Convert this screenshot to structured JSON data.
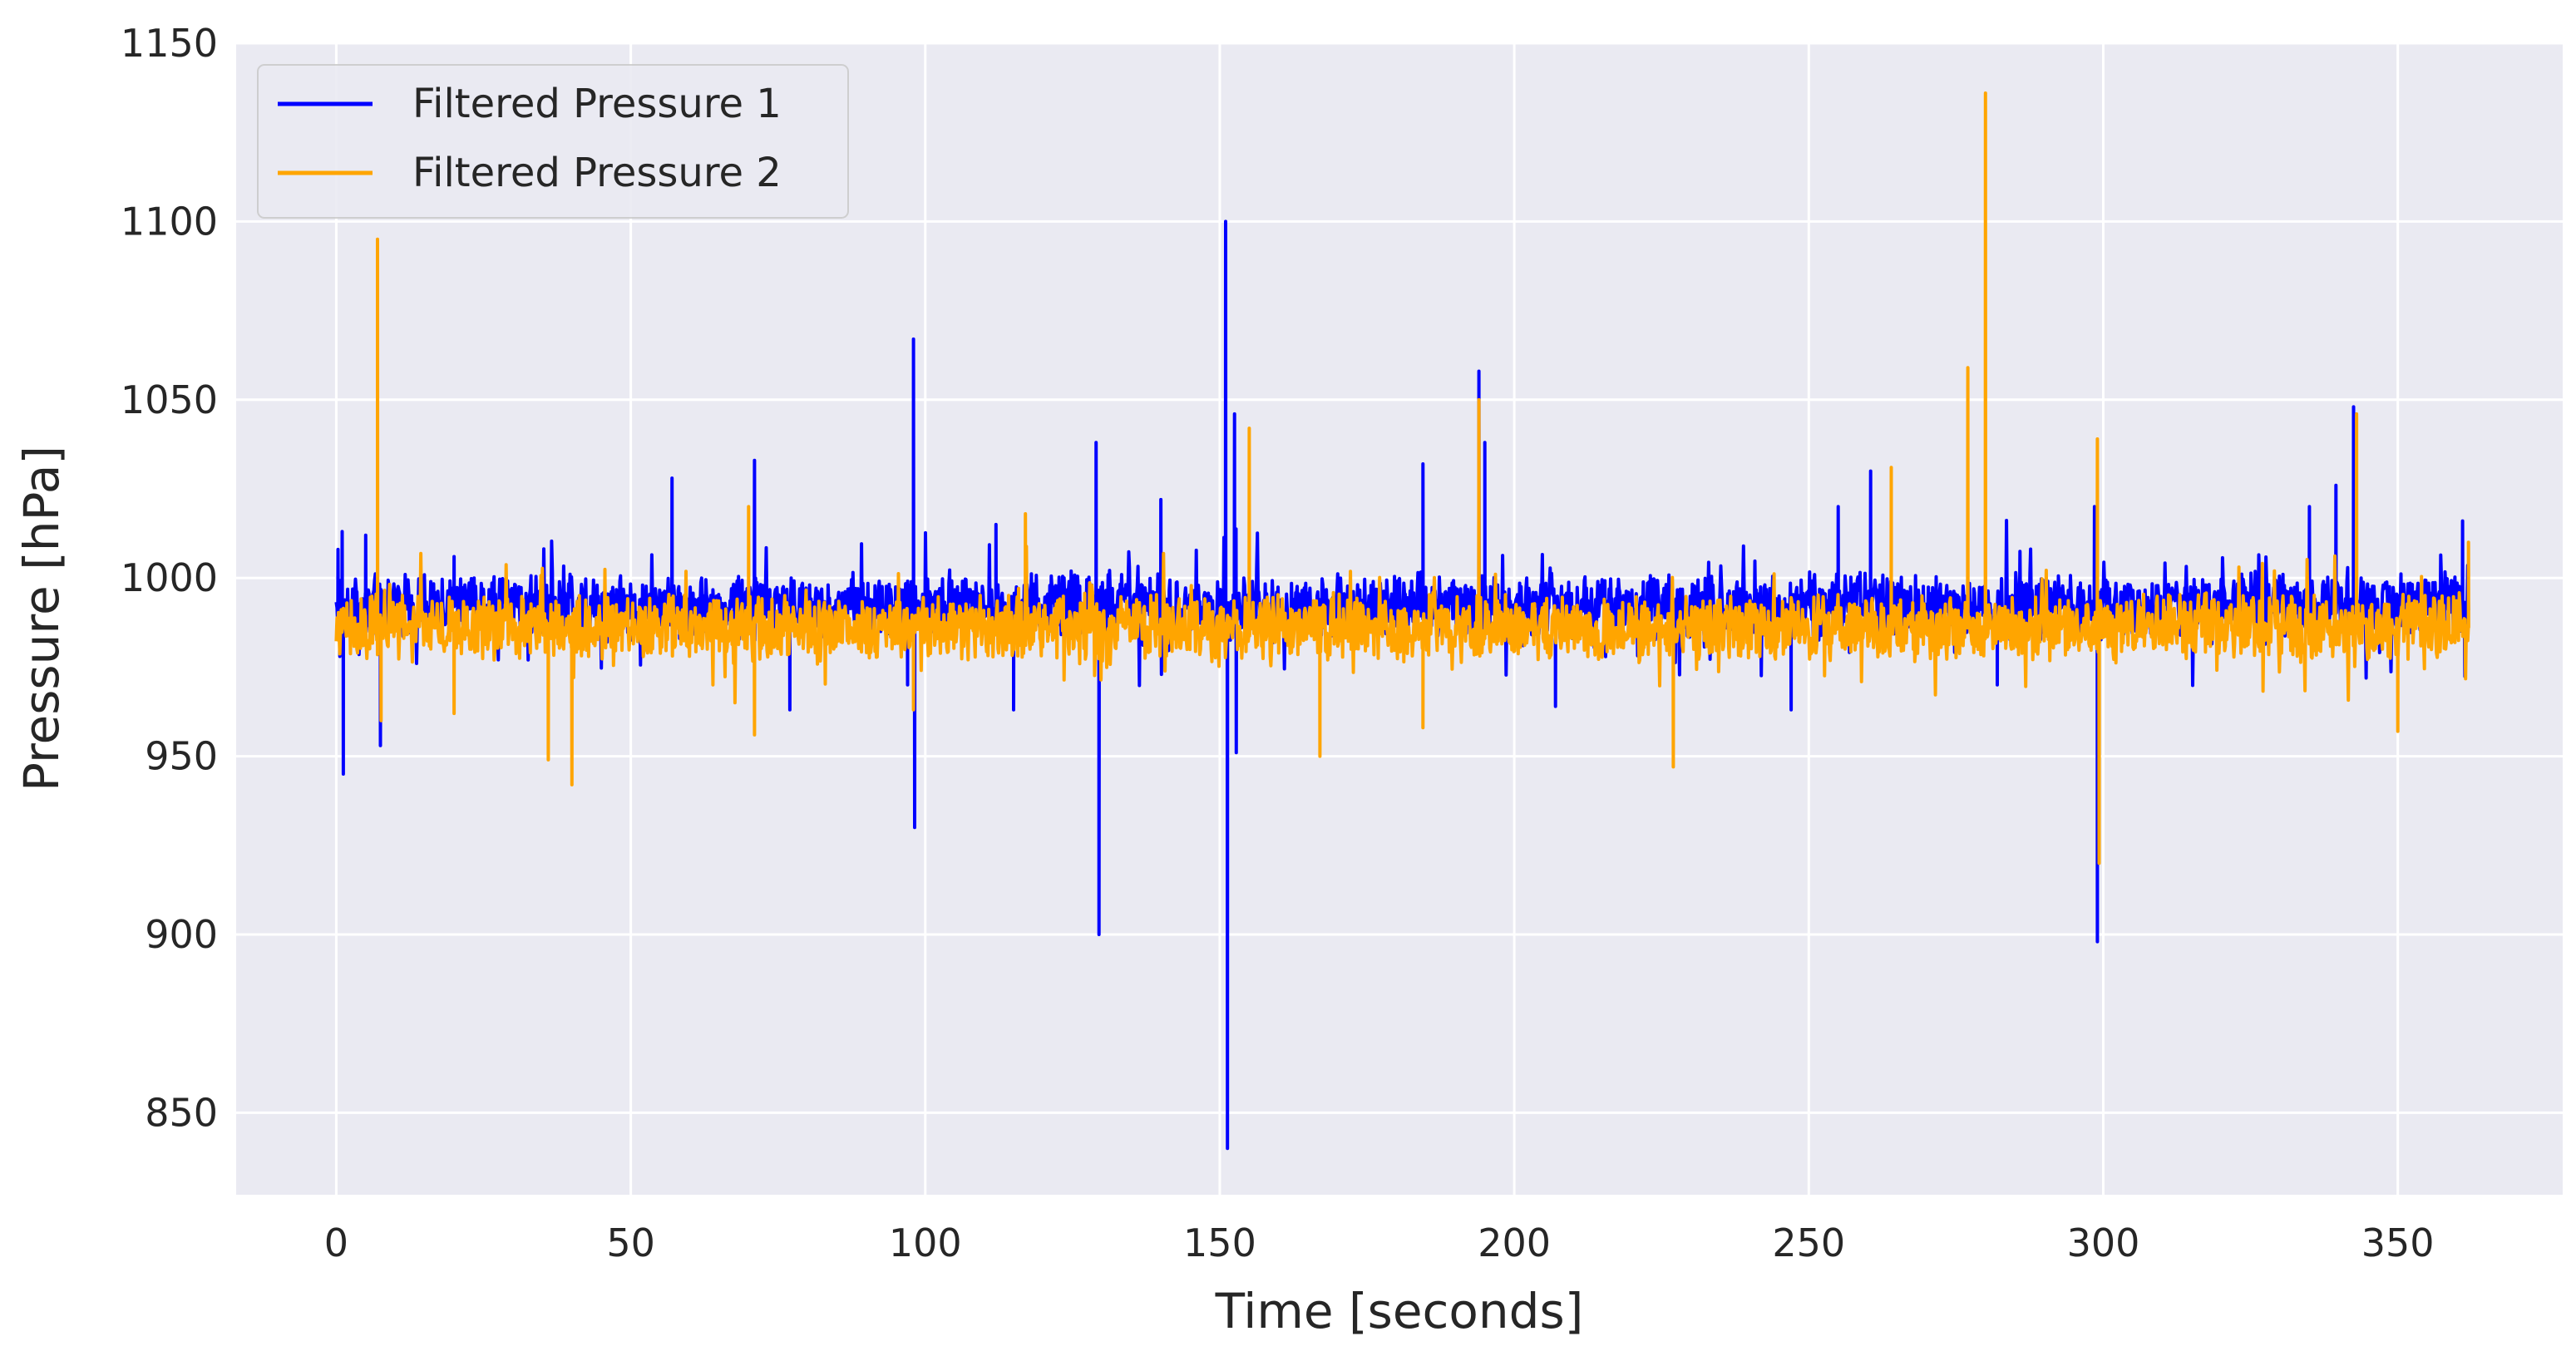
{
  "chart_data": {
    "type": "line",
    "xlabel": "Time [seconds]",
    "ylabel": "Pressure [hPa]",
    "xlim": [
      -17,
      378
    ],
    "ylim": [
      827,
      1150
    ],
    "xticks": [
      0,
      50,
      100,
      150,
      200,
      250,
      300,
      350
    ],
    "yticks": [
      850,
      900,
      950,
      1000,
      1050,
      1100,
      1150
    ],
    "grid": true,
    "legend_position": "top-left",
    "background": "#eaeaf2",
    "series": [
      {
        "name": "Filtered Pressure 1",
        "color": "#0000ff",
        "x_range": [
          0,
          362
        ],
        "baseline": 992,
        "spikes": [
          {
            "x": 0.3,
            "y": 1008
          },
          {
            "x": 0.6,
            "y": 978
          },
          {
            "x": 1.0,
            "y": 1013
          },
          {
            "x": 1.2,
            "y": 945
          },
          {
            "x": 5.0,
            "y": 1012
          },
          {
            "x": 7.5,
            "y": 953
          },
          {
            "x": 20.0,
            "y": 1006
          },
          {
            "x": 57.0,
            "y": 1028
          },
          {
            "x": 71.0,
            "y": 1033
          },
          {
            "x": 77.0,
            "y": 963
          },
          {
            "x": 97.0,
            "y": 970
          },
          {
            "x": 98.0,
            "y": 1067
          },
          {
            "x": 98.2,
            "y": 930
          },
          {
            "x": 112.0,
            "y": 1015
          },
          {
            "x": 115.0,
            "y": 963
          },
          {
            "x": 129.0,
            "y": 1038
          },
          {
            "x": 129.5,
            "y": 900
          },
          {
            "x": 140.0,
            "y": 1022
          },
          {
            "x": 151.0,
            "y": 1100
          },
          {
            "x": 151.3,
            "y": 840
          },
          {
            "x": 152.5,
            "y": 1046
          },
          {
            "x": 152.8,
            "y": 951
          },
          {
            "x": 184.5,
            "y": 1032
          },
          {
            "x": 194.0,
            "y": 1058
          },
          {
            "x": 195.0,
            "y": 1038
          },
          {
            "x": 207.0,
            "y": 964
          },
          {
            "x": 247.0,
            "y": 963
          },
          {
            "x": 255.0,
            "y": 1020
          },
          {
            "x": 260.5,
            "y": 1030
          },
          {
            "x": 282.0,
            "y": 970
          },
          {
            "x": 298.5,
            "y": 1020
          },
          {
            "x": 299.0,
            "y": 898
          },
          {
            "x": 335.0,
            "y": 1020
          },
          {
            "x": 339.5,
            "y": 1026
          },
          {
            "x": 342.5,
            "y": 1048
          },
          {
            "x": 361.0,
            "y": 1016
          }
        ]
      },
      {
        "name": "Filtered Pressure 2",
        "color": "#ffa500",
        "x_range": [
          0,
          362
        ],
        "baseline": 986,
        "spikes": [
          {
            "x": 7.0,
            "y": 1095
          },
          {
            "x": 7.6,
            "y": 960
          },
          {
            "x": 20.0,
            "y": 962
          },
          {
            "x": 36.0,
            "y": 949
          },
          {
            "x": 40.0,
            "y": 942
          },
          {
            "x": 70.0,
            "y": 1020
          },
          {
            "x": 71.0,
            "y": 956
          },
          {
            "x": 98.0,
            "y": 963
          },
          {
            "x": 117.0,
            "y": 1018
          },
          {
            "x": 155.0,
            "y": 1042
          },
          {
            "x": 167.0,
            "y": 950
          },
          {
            "x": 184.5,
            "y": 958
          },
          {
            "x": 194.0,
            "y": 1050
          },
          {
            "x": 227.0,
            "y": 947
          },
          {
            "x": 264.0,
            "y": 1031
          },
          {
            "x": 277.0,
            "y": 1059
          },
          {
            "x": 280.0,
            "y": 1136
          },
          {
            "x": 299.0,
            "y": 1039
          },
          {
            "x": 299.3,
            "y": 920
          },
          {
            "x": 343.0,
            "y": 1046
          },
          {
            "x": 350.0,
            "y": 957
          },
          {
            "x": 362.0,
            "y": 1010
          }
        ]
      }
    ]
  }
}
